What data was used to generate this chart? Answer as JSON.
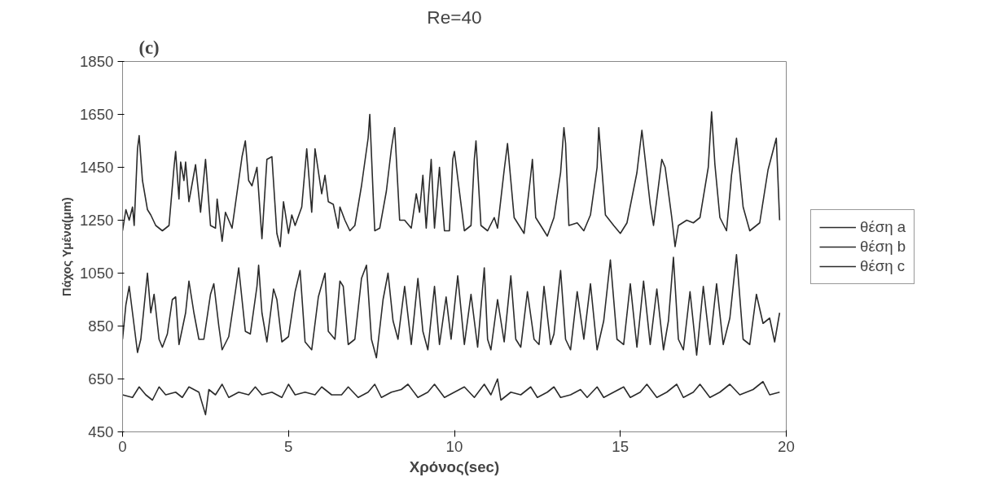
{
  "chart_data": {
    "type": "line",
    "title": "Re=40",
    "xlabel": "Χρόνος(sec)",
    "ylabel": "Πάχος Υμένα(μm)",
    "annotations": [
      "(c)"
    ],
    "xlim": [
      0,
      20
    ],
    "xticks": [
      0,
      5,
      10,
      15,
      20
    ],
    "ylim": [
      450,
      1850
    ],
    "yticks": [
      450,
      650,
      850,
      1050,
      1250,
      1450,
      1650,
      1850
    ],
    "grid": false,
    "legend": "right",
    "marker": "none",
    "line_style": "solid",
    "series": [
      {
        "name": "θέση a",
        "color": "#2b2b2b",
        "x": [
          0,
          0.1,
          0.2,
          0.3,
          0.35,
          0.45,
          0.5,
          0.6,
          0.75,
          0.85,
          1.0,
          1.2,
          1.4,
          1.55,
          1.6,
          1.7,
          1.75,
          1.85,
          1.9,
          2.0,
          2.2,
          2.35,
          2.5,
          2.65,
          2.8,
          2.85,
          3.0,
          3.1,
          3.3,
          3.6,
          3.7,
          3.8,
          3.9,
          4.05,
          4.2,
          4.35,
          4.5,
          4.65,
          4.75,
          4.85,
          5.0,
          5.1,
          5.2,
          5.4,
          5.55,
          5.7,
          5.8,
          6.0,
          6.1,
          6.2,
          6.35,
          6.5,
          6.55,
          6.7,
          6.85,
          7.0,
          7.2,
          7.4,
          7.45,
          7.55,
          7.6,
          7.75,
          7.95,
          8.1,
          8.2,
          8.35,
          8.5,
          8.7,
          8.85,
          8.95,
          9.05,
          9.15,
          9.3,
          9.4,
          9.55,
          9.7,
          9.85,
          9.95,
          10.0,
          10.3,
          10.5,
          10.6,
          10.65,
          10.8,
          11.0,
          11.2,
          11.3,
          11.5,
          11.6,
          11.8,
          12.0,
          12.1,
          12.3,
          12.35,
          12.45,
          12.6,
          12.8,
          13.0,
          13.2,
          13.3,
          13.35,
          13.45,
          13.7,
          13.9,
          14.1,
          14.3,
          14.35,
          14.55,
          14.8,
          15.0,
          15.2,
          15.5,
          15.65,
          15.9,
          16.0,
          16.25,
          16.35,
          16.55,
          16.65,
          16.75,
          17.0,
          17.2,
          17.4,
          17.65,
          17.75,
          17.85,
          18.0,
          18.2,
          18.35,
          18.5,
          18.7,
          18.9,
          19.1,
          19.2,
          19.45,
          19.7,
          19.8
        ],
        "values": [
          1210,
          1290,
          1250,
          1300,
          1230,
          1520,
          1570,
          1400,
          1290,
          1270,
          1230,
          1210,
          1230,
          1450,
          1510,
          1330,
          1470,
          1400,
          1470,
          1320,
          1460,
          1280,
          1480,
          1230,
          1220,
          1330,
          1170,
          1280,
          1220,
          1490,
          1550,
          1400,
          1380,
          1450,
          1180,
          1480,
          1490,
          1200,
          1150,
          1320,
          1200,
          1270,
          1230,
          1300,
          1520,
          1280,
          1520,
          1350,
          1420,
          1320,
          1310,
          1220,
          1300,
          1250,
          1210,
          1230,
          1380,
          1560,
          1650,
          1350,
          1210,
          1220,
          1360,
          1520,
          1600,
          1250,
          1250,
          1220,
          1350,
          1280,
          1420,
          1220,
          1480,
          1220,
          1450,
          1210,
          1210,
          1480,
          1510,
          1210,
          1230,
          1480,
          1550,
          1230,
          1210,
          1260,
          1220,
          1440,
          1540,
          1260,
          1220,
          1200,
          1420,
          1480,
          1260,
          1230,
          1190,
          1260,
          1430,
          1600,
          1540,
          1230,
          1240,
          1210,
          1270,
          1450,
          1600,
          1270,
          1230,
          1200,
          1240,
          1430,
          1590,
          1310,
          1230,
          1480,
          1450,
          1260,
          1150,
          1230,
          1250,
          1240,
          1260,
          1450,
          1660,
          1460,
          1260,
          1210,
          1420,
          1560,
          1300,
          1210,
          1230,
          1240,
          1440,
          1560,
          1250
        ]
      },
      {
        "name": "θέση b",
        "color": "#2b2b2b",
        "x": [
          0,
          0.1,
          0.2,
          0.35,
          0.45,
          0.55,
          0.75,
          0.85,
          0.95,
          1.1,
          1.2,
          1.35,
          1.5,
          1.6,
          1.7,
          1.9,
          2.0,
          2.15,
          2.3,
          2.45,
          2.65,
          2.75,
          2.9,
          3.0,
          3.2,
          3.4,
          3.5,
          3.7,
          3.85,
          4.05,
          4.1,
          4.2,
          4.35,
          4.55,
          4.65,
          4.8,
          5.0,
          5.2,
          5.35,
          5.5,
          5.7,
          5.9,
          6.1,
          6.2,
          6.4,
          6.55,
          6.65,
          6.8,
          7.0,
          7.2,
          7.35,
          7.5,
          7.65,
          7.85,
          8.0,
          8.15,
          8.3,
          8.5,
          8.7,
          8.9,
          9.05,
          9.2,
          9.4,
          9.55,
          9.75,
          9.9,
          10.1,
          10.3,
          10.5,
          10.7,
          10.9,
          11.0,
          11.1,
          11.3,
          11.5,
          11.7,
          11.85,
          12.0,
          12.2,
          12.4,
          12.55,
          12.7,
          12.9,
          13.0,
          13.2,
          13.35,
          13.5,
          13.7,
          13.9,
          14.1,
          14.3,
          14.5,
          14.7,
          14.9,
          15.1,
          15.3,
          15.5,
          15.7,
          15.9,
          16.1,
          16.3,
          16.45,
          16.6,
          16.75,
          16.9,
          17.1,
          17.3,
          17.5,
          17.7,
          17.9,
          18.1,
          18.3,
          18.5,
          18.7,
          18.9,
          19.1,
          19.3,
          19.5,
          19.65,
          19.8
        ],
        "values": [
          800,
          930,
          1000,
          850,
          750,
          800,
          1050,
          900,
          970,
          800,
          770,
          820,
          950,
          960,
          780,
          900,
          1020,
          900,
          800,
          800,
          970,
          1010,
          850,
          760,
          810,
          980,
          1070,
          830,
          820,
          1000,
          1080,
          900,
          790,
          990,
          950,
          790,
          810,
          980,
          1060,
          790,
          760,
          960,
          1050,
          830,
          800,
          1020,
          1000,
          780,
          800,
          1030,
          1080,
          800,
          730,
          950,
          1050,
          870,
          800,
          1000,
          780,
          1030,
          830,
          760,
          1000,
          780,
          960,
          800,
          1040,
          780,
          970,
          770,
          1070,
          800,
          760,
          950,
          790,
          1040,
          800,
          770,
          980,
          800,
          780,
          1000,
          780,
          820,
          1060,
          800,
          760,
          980,
          800,
          1010,
          760,
          870,
          1100,
          800,
          780,
          1010,
          770,
          1020,
          780,
          990,
          760,
          870,
          1110,
          800,
          760,
          980,
          740,
          1000,
          780,
          1010,
          780,
          880,
          1120,
          800,
          780,
          970,
          860,
          880,
          790,
          900
        ]
      },
      {
        "name": "θέση c",
        "color": "#2b2b2b",
        "x": [
          0,
          0.3,
          0.5,
          0.7,
          0.9,
          1.1,
          1.3,
          1.6,
          1.8,
          2.0,
          2.3,
          2.5,
          2.6,
          2.8,
          3.0,
          3.2,
          3.5,
          3.8,
          4.0,
          4.2,
          4.5,
          4.8,
          5.0,
          5.2,
          5.5,
          5.8,
          6.0,
          6.3,
          6.6,
          6.8,
          7.1,
          7.4,
          7.6,
          7.8,
          8.1,
          8.4,
          8.6,
          8.9,
          9.2,
          9.4,
          9.7,
          10.0,
          10.3,
          10.6,
          10.9,
          11.1,
          11.3,
          11.4,
          11.7,
          12.0,
          12.3,
          12.5,
          12.8,
          13.0,
          13.2,
          13.5,
          13.8,
          14.0,
          14.3,
          14.5,
          14.8,
          15.1,
          15.3,
          15.6,
          15.8,
          16.1,
          16.4,
          16.7,
          16.9,
          17.2,
          17.4,
          17.7,
          18.0,
          18.3,
          18.6,
          19.0,
          19.3,
          19.5,
          19.8
        ],
        "values": [
          590,
          580,
          620,
          590,
          570,
          620,
          590,
          600,
          580,
          620,
          600,
          515,
          610,
          590,
          630,
          580,
          600,
          590,
          620,
          590,
          600,
          580,
          630,
          590,
          600,
          590,
          620,
          590,
          590,
          620,
          580,
          600,
          630,
          580,
          600,
          610,
          630,
          580,
          600,
          630,
          580,
          600,
          620,
          580,
          630,
          590,
          650,
          570,
          600,
          590,
          620,
          580,
          600,
          620,
          580,
          590,
          610,
          580,
          620,
          580,
          600,
          620,
          580,
          600,
          630,
          580,
          600,
          630,
          580,
          600,
          630,
          580,
          600,
          630,
          590,
          610,
          640,
          590,
          600
        ]
      }
    ]
  }
}
